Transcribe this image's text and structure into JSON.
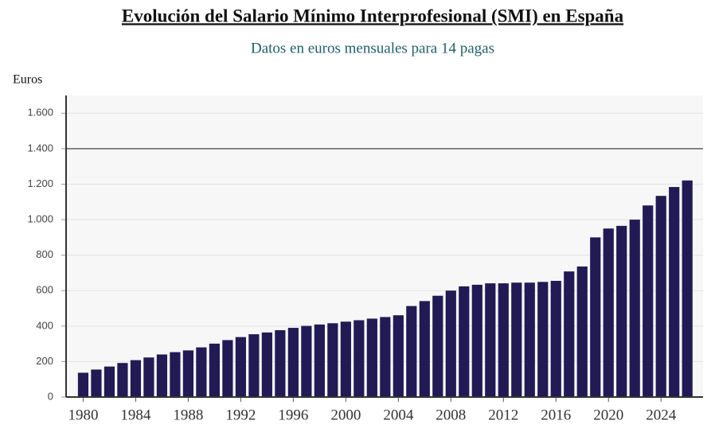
{
  "chart_data": {
    "type": "bar",
    "title": "Evolución del Salario Mínimo Interprofesional (SMI) en España",
    "subtitle": "Datos en euros mensuales para 14 pagas",
    "y_label": "Euros",
    "x": [
      1980,
      1981,
      1982,
      1983,
      1984,
      1985,
      1986,
      1987,
      1988,
      1989,
      1990,
      1991,
      1992,
      1993,
      1994,
      1995,
      1996,
      1997,
      1998,
      1999,
      2000,
      2001,
      2002,
      2003,
      2004,
      2005,
      2006,
      2007,
      2008,
      2009,
      2010,
      2011,
      2012,
      2013,
      2014,
      2015,
      2016,
      2017,
      2018,
      2019,
      2020,
      2021,
      2022,
      2023,
      2024,
      2025,
      2026
    ],
    "values": [
      137,
      155,
      172,
      192,
      208,
      223,
      240,
      253,
      263,
      280,
      301,
      321,
      338,
      354,
      364,
      377,
      390,
      401,
      409,
      416,
      425,
      433,
      442,
      451,
      461,
      513,
      541,
      571,
      600,
      624,
      633,
      641,
      641,
      645,
      645,
      649,
      655,
      708,
      736,
      900,
      950,
      965,
      1000,
      1080,
      1134,
      1184,
      1221
    ],
    "color": "#221a55",
    "xlim": [
      1978.7,
      2027.2
    ],
    "xticks": [
      1980,
      1984,
      1988,
      1992,
      1996,
      2000,
      2004,
      2008,
      2012,
      2016,
      2020,
      2024
    ],
    "ylim": [
      0,
      1700
    ],
    "yticks": [
      0,
      200,
      400,
      600,
      800,
      {
        "value": 1000,
        "label": "1.000"
      },
      {
        "value": 1200,
        "label": "1.200"
      },
      {
        "value": 1400,
        "label": "1.400"
      },
      {
        "value": 1600,
        "label": "1.600"
      }
    ],
    "reference_line": 1400,
    "grid": true
  }
}
